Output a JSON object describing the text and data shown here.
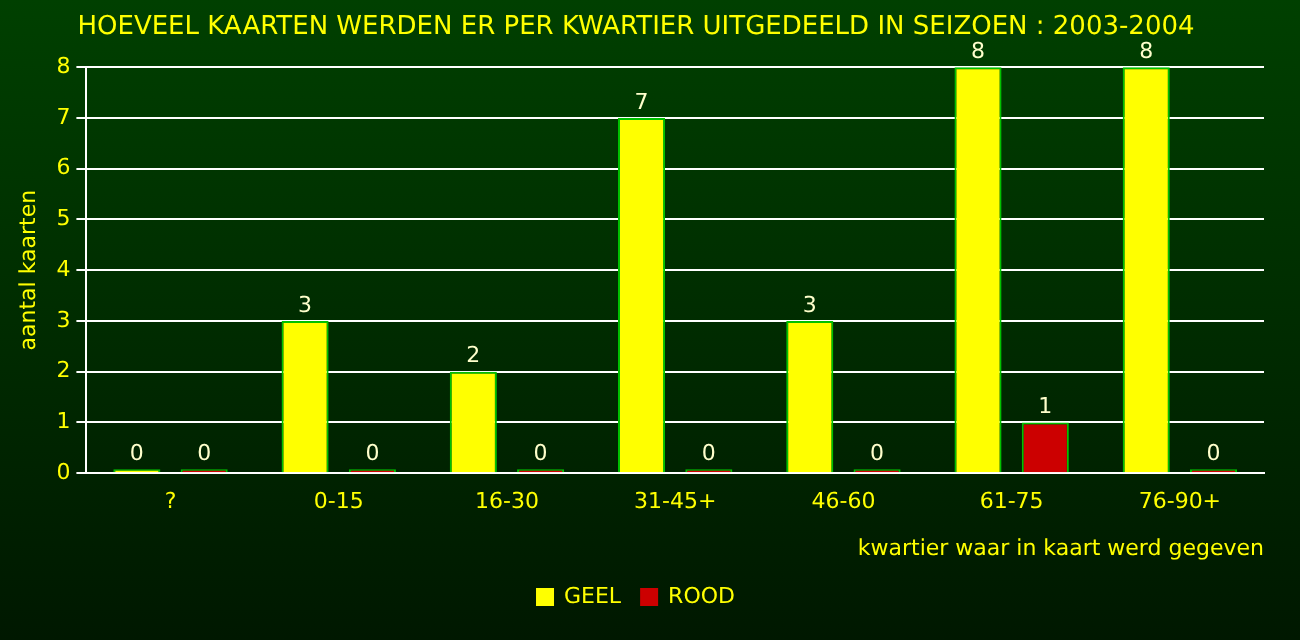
{
  "chart_data": {
    "type": "bar",
    "title": "HOEVEEL KAARTEN WERDEN ER PER KWARTIER UITGEDEELD IN SEIZOEN : 2003-2004",
    "xlabel": "kwartier waar in kaart werd gegeven",
    "ylabel": "aantal kaarten",
    "categories": [
      "?",
      "0-15",
      "16-30",
      "31-45+",
      "46-60",
      "61-75",
      "76-90+"
    ],
    "series": [
      {
        "name": "GEEL",
        "color": "#ffff00",
        "values": [
          0,
          3,
          2,
          7,
          3,
          8,
          8
        ]
      },
      {
        "name": "ROOD",
        "color": "#cc0000",
        "values": [
          0,
          0,
          0,
          0,
          0,
          1,
          0
        ]
      }
    ],
    "ylim": [
      0,
      8
    ],
    "yticks": [
      0,
      1,
      2,
      3,
      4,
      5,
      6,
      7,
      8
    ],
    "grid": "y",
    "legend": "bottom",
    "data_labels": true
  }
}
